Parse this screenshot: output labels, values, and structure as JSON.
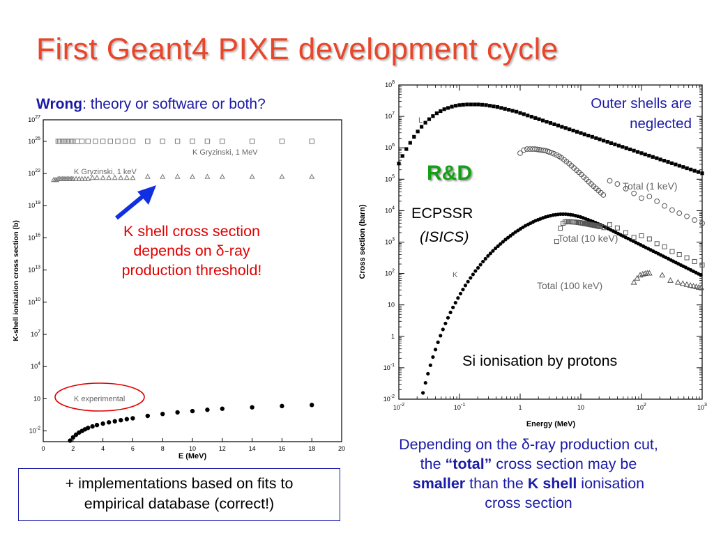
{
  "slide": {
    "title": "First Geant4 PIXE development cycle",
    "question_bold": "Wrong",
    "question_rest": ": theory or software or both?",
    "red_note": [
      "K shell cross section",
      "depends on δ-ray",
      "production threshold!"
    ],
    "box_note": [
      "+ implementations based on fits to",
      "empirical database (correct!)"
    ],
    "blue_note": {
      "line1": "Depending on the δ-ray production cut,",
      "line2_a": "the ",
      "line2_b": "“total”",
      "line2_c": " cross section may be",
      "line3_a": "smaller",
      "line3_b": " than the ",
      "line3_c": "K shell",
      "line3_d": " ionisation",
      "line4": "cross section"
    }
  },
  "chart_data": [
    {
      "type": "scatter",
      "xlabel": "E (MeV)",
      "ylabel": "K-shell ionization cross section (b)",
      "xlim": [
        0,
        20
      ],
      "ylim_log10": [
        -3,
        27
      ],
      "x_ticks": [
        "0",
        "2",
        "4",
        "6",
        "8",
        "10",
        "12",
        "14",
        "16",
        "18",
        "20"
      ],
      "y_ticks": [
        {
          "base": "10",
          "exp": "-2"
        },
        {
          "base": "10",
          "exp": ""
        },
        {
          "base": "10",
          "exp": "4"
        },
        {
          "base": "10",
          "exp": "7"
        },
        {
          "base": "10",
          "exp": "10"
        },
        {
          "base": "10",
          "exp": "13"
        },
        {
          "base": "10",
          "exp": "16"
        },
        {
          "base": "10",
          "exp": "19"
        },
        {
          "base": "10",
          "exp": "22"
        },
        {
          "base": "10",
          "exp": "25"
        },
        {
          "base": "10",
          "exp": "27"
        }
      ],
      "series": [
        {
          "name": "K Gryzinski, 1 MeV",
          "marker": "square",
          "x": [
            1.0,
            1.1,
            1.2,
            1.3,
            1.4,
            1.5,
            1.6,
            1.7,
            1.8,
            1.9,
            2.0,
            2.3,
            2.6,
            3.0,
            3.5,
            4.0,
            4.5,
            5.0,
            5.5,
            6.0,
            7.0,
            8.0,
            9.0,
            10.0,
            11.0,
            12.0,
            14.0,
            16.0,
            18.0
          ],
          "y": [
            25,
            25,
            25,
            25,
            25,
            25,
            25,
            25,
            25,
            25,
            25,
            25,
            25,
            25,
            25,
            25,
            25,
            25,
            25,
            25,
            25,
            25,
            25,
            25,
            25,
            25,
            25,
            25,
            25
          ]
        },
        {
          "name": "K Gryzinski, 1 keV",
          "marker": "triangle",
          "x": [
            0.7,
            0.8,
            0.9,
            1.0,
            1.1,
            1.2,
            1.3,
            1.4,
            1.5,
            1.6,
            1.7,
            1.8,
            1.9,
            2.0,
            2.2,
            2.4,
            2.6,
            2.8,
            3.0,
            3.3,
            3.6,
            4.0,
            4.4,
            4.8,
            5.2,
            5.6,
            6.0,
            7.0,
            8.0,
            9.0,
            10.0,
            11.0,
            12.0,
            14.0,
            16.0,
            18.0
          ],
          "y": [
            21.4,
            21.4,
            21.4,
            21.5,
            21.5,
            21.5,
            21.5,
            21.5,
            21.5,
            21.5,
            21.5,
            21.5,
            21.5,
            21.5,
            21.5,
            21.5,
            21.5,
            21.5,
            21.5,
            21.6,
            21.6,
            21.6,
            21.6,
            21.6,
            21.6,
            21.6,
            21.6,
            21.7,
            21.7,
            21.7,
            21.7,
            21.7,
            21.7,
            21.7,
            21.7,
            21.7
          ]
        },
        {
          "name": "K experimental",
          "marker": "dot",
          "x": [
            1.8,
            2.0,
            2.2,
            2.4,
            2.6,
            2.8,
            3.0,
            3.3,
            3.6,
            4.0,
            4.4,
            4.8,
            5.2,
            5.6,
            6.0,
            7.0,
            8.0,
            9.0,
            10.0,
            11.0,
            12.0,
            14.0,
            16.0,
            18.0
          ],
          "y": [
            -2.9,
            -2.6,
            -2.35,
            -2.15,
            -2.0,
            -1.85,
            -1.72,
            -1.58,
            -1.45,
            -1.32,
            -1.2,
            -1.1,
            -1.0,
            -0.9,
            -0.82,
            -0.6,
            -0.42,
            -0.27,
            -0.15,
            -0.03,
            0.07,
            0.2,
            0.32,
            0.42
          ]
        }
      ],
      "annotations": [
        "K Gryzinski, 1 MeV",
        "K Gryzinski, 1 keV",
        "K experimental"
      ]
    },
    {
      "type": "scatter",
      "xlabel": "Energy (MeV)",
      "ylabel": "Cross section (barn)",
      "x_log10": [
        -2,
        3
      ],
      "y_log10": [
        -2,
        8
      ],
      "x_ticks": [
        {
          "base": "10",
          "exp": "-2"
        },
        {
          "base": "10",
          "exp": "-1"
        },
        {
          "base": "1",
          "exp": ""
        },
        {
          "base": "10",
          "exp": ""
        },
        {
          "base": "10",
          "exp": "2"
        },
        {
          "base": "10",
          "exp": "3"
        }
      ],
      "y_ticks": [
        {
          "base": "10",
          "exp": "-2"
        },
        {
          "base": "10",
          "exp": "-1"
        },
        {
          "base": "1",
          "exp": ""
        },
        {
          "base": "10",
          "exp": ""
        },
        {
          "base": "10",
          "exp": "2"
        },
        {
          "base": "10",
          "exp": "3"
        },
        {
          "base": "10",
          "exp": "4"
        },
        {
          "base": "10",
          "exp": "5"
        },
        {
          "base": "10",
          "exp": "6"
        },
        {
          "base": "10",
          "exp": "7"
        },
        {
          "base": "10",
          "exp": "8"
        }
      ],
      "series": [
        {
          "name": "L",
          "marker": "square",
          "x": [
            0.01,
            0.0115,
            0.0133,
            0.0154,
            0.0178,
            0.0205,
            0.0237,
            0.0274,
            0.0316,
            0.0365,
            0.0422,
            0.0487,
            0.0562,
            0.0649,
            0.075,
            0.0866,
            0.1,
            0.115,
            0.133,
            0.154,
            0.178,
            0.205,
            0.237,
            0.274,
            0.316,
            0.365,
            0.422,
            0.487,
            0.562,
            0.649,
            0.75,
            0.866,
            1.0,
            1.15,
            1.33,
            1.54,
            1.78,
            2.05,
            2.37,
            2.74,
            3.16,
            3.65,
            4.22,
            4.87,
            5.62,
            6.49,
            7.5,
            8.66,
            10,
            11.5,
            13.3,
            15.4,
            17.8,
            20.5,
            23.7,
            27.4,
            31.6,
            36.5,
            42.2,
            48.7,
            56.2,
            64.9,
            75,
            86.6,
            100,
            115,
            133,
            154,
            178,
            205,
            237,
            274,
            316,
            365,
            422,
            487,
            562,
            649,
            750,
            866,
            1000
          ],
          "y": [
            5.5,
            5.74,
            5.96,
            6.16,
            6.35,
            6.52,
            6.67,
            6.8,
            6.91,
            7.01,
            7.1,
            7.17,
            7.23,
            7.27,
            7.31,
            7.34,
            7.36,
            7.37,
            7.38,
            7.38,
            7.38,
            7.38,
            7.37,
            7.36,
            7.34,
            7.32,
            7.3,
            7.27,
            7.24,
            7.21,
            7.18,
            7.15,
            7.11,
            7.07,
            7.03,
            6.99,
            6.95,
            6.91,
            6.87,
            6.83,
            6.79,
            6.75,
            6.71,
            6.67,
            6.63,
            6.59,
            6.55,
            6.51,
            6.47,
            6.43,
            6.39,
            6.35,
            6.31,
            6.27,
            6.23,
            6.19,
            6.15,
            6.11,
            6.07,
            6.03,
            5.99,
            5.95,
            5.91,
            5.87,
            5.83,
            5.79,
            5.75,
            5.71,
            5.67,
            5.63,
            5.59,
            5.55,
            5.51,
            5.47,
            5.43,
            5.39,
            5.35,
            5.31,
            5.27,
            5.23,
            5.19
          ]
        },
        {
          "name": "K",
          "marker": "dot",
          "x": [
            0.025,
            0.0275,
            0.0302,
            0.0332,
            0.0365,
            0.0402,
            0.0442,
            0.0486,
            0.0534,
            0.0587,
            0.0646,
            0.071,
            0.0781,
            0.0859,
            0.0944,
            0.104,
            0.114,
            0.125,
            0.138,
            0.152,
            0.167,
            0.183,
            0.202,
            0.222,
            0.244,
            0.268,
            0.295,
            0.324,
            0.356,
            0.392,
            0.431,
            0.473,
            0.521,
            0.573,
            0.63,
            0.692,
            0.761,
            0.837,
            0.921,
            1.01,
            1.11,
            1.22,
            1.35,
            1.48,
            1.63,
            1.79,
            1.97,
            2.16,
            2.38,
            2.62,
            2.88,
            3.16,
            3.48,
            3.83,
            4.21,
            4.63,
            5.09,
            5.6,
            6.16,
            6.77,
            7.44,
            8.19,
            9.0,
            9.9,
            10.9,
            12.0,
            13.2,
            14.5,
            15.9,
            17.5,
            19.3,
            21.2,
            23.3,
            25.6,
            28.2,
            31.0,
            34.1,
            37.5,
            41.2,
            45.3,
            49.8,
            54.8,
            60.3,
            66.3,
            72.9,
            80.2,
            88.2,
            97.0,
            107,
            117,
            129,
            142,
            156,
            172,
            189,
            208,
            229,
            251,
            277,
            304,
            334,
            368,
            404,
            445,
            489,
            538,
            592,
            651,
            716,
            788,
            866,
            953
          ],
          "y": [
            -1.8,
            -1.48,
            -1.19,
            -0.92,
            -0.66,
            -0.42,
            -0.19,
            0.02,
            0.22,
            0.41,
            0.59,
            0.76,
            0.92,
            1.07,
            1.22,
            1.36,
            1.49,
            1.62,
            1.74,
            1.86,
            1.97,
            2.08,
            2.18,
            2.28,
            2.38,
            2.47,
            2.56,
            2.64,
            2.72,
            2.8,
            2.87,
            2.94,
            3.01,
            3.08,
            3.14,
            3.2,
            3.26,
            3.32,
            3.37,
            3.42,
            3.47,
            3.52,
            3.56,
            3.6,
            3.64,
            3.68,
            3.71,
            3.74,
            3.77,
            3.8,
            3.82,
            3.84,
            3.86,
            3.87,
            3.88,
            3.89,
            3.89,
            3.89,
            3.88,
            3.87,
            3.86,
            3.84,
            3.82,
            3.8,
            3.77,
            3.74,
            3.71,
            3.68,
            3.65,
            3.62,
            3.58,
            3.55,
            3.51,
            3.47,
            3.43,
            3.39,
            3.35,
            3.31,
            3.27,
            3.23,
            3.19,
            3.15,
            3.11,
            3.07,
            3.03,
            2.99,
            2.95,
            2.91,
            2.87,
            2.83,
            2.79,
            2.75,
            2.71,
            2.67,
            2.63,
            2.59,
            2.55,
            2.51,
            2.47,
            2.43,
            2.39,
            2.35,
            2.31,
            2.27,
            2.23,
            2.19,
            2.15,
            2.11,
            2.07,
            2.03,
            1.99,
            1.95
          ]
        },
        {
          "name": "Total (1 keV)",
          "marker": "circle",
          "x": [
            1.0,
            1.15,
            1.3,
            1.45,
            1.6,
            1.75,
            1.9,
            2.05,
            2.2,
            2.4,
            2.6,
            2.8,
            3.0,
            3.3,
            3.6,
            4.0,
            4.4,
            4.8,
            5.3,
            5.8,
            6.4,
            7.0,
            7.7,
            8.5,
            9.3,
            10.2,
            11.2,
            12.3,
            13.5,
            14.8,
            16.2,
            17.8,
            19.5,
            21.4,
            23.5,
            30,
            40,
            55,
            75,
            100,
            135,
            180,
            240,
            320,
            420,
            560,
            750,
            1000
          ],
          "y": [
            5.83,
            5.93,
            5.96,
            5.96,
            5.96,
            5.96,
            5.95,
            5.94,
            5.93,
            5.92,
            5.91,
            5.89,
            5.87,
            5.84,
            5.81,
            5.77,
            5.73,
            5.68,
            5.62,
            5.56,
            5.5,
            5.43,
            5.36,
            5.29,
            5.22,
            5.15,
            5.07,
            5.0,
            4.92,
            4.85,
            4.78,
            4.71,
            4.64,
            4.57,
            4.5,
            4.95,
            4.85,
            4.7,
            4.55,
            4.4,
            4.45,
            4.3,
            4.15,
            4.02,
            3.92,
            3.82,
            3.7,
            3.6
          ]
        },
        {
          "name": "Total (10 keV)",
          "marker": "square",
          "x": [
            4.0,
            4.6,
            5.1,
            5.5,
            5.9,
            6.3,
            6.7,
            7.1,
            7.5,
            7.9,
            8.3,
            8.7,
            9.1,
            9.5,
            9.9,
            10.3,
            10.7,
            11.1,
            11.5,
            11.9,
            12.3,
            12.7,
            13.1,
            13.5,
            13.9,
            14.3,
            14.7,
            15.2,
            15.7,
            16.2,
            16.8,
            17.4,
            18.0,
            18.6,
            19.2,
            19.8,
            21.0,
            24.0,
            30,
            40,
            55,
            75,
            100,
            135,
            180,
            240,
            320,
            420,
            560,
            750,
            1000
          ],
          "y": [
            3.02,
            3.44,
            3.6,
            3.64,
            3.65,
            3.65,
            3.65,
            3.64,
            3.64,
            3.64,
            3.63,
            3.63,
            3.62,
            3.62,
            3.61,
            3.61,
            3.6,
            3.6,
            3.59,
            3.59,
            3.58,
            3.58,
            3.57,
            3.57,
            3.56,
            3.56,
            3.55,
            3.55,
            3.54,
            3.54,
            3.53,
            3.53,
            3.52,
            3.52,
            3.51,
            3.5,
            3.49,
            3.46,
            3.55,
            3.45,
            3.3,
            3.15,
            3.2,
            3.1,
            2.95,
            2.85,
            2.7,
            2.6,
            2.5,
            2.38,
            2.27
          ]
        },
        {
          "name": "Total (100 keV)",
          "marker": "triangle",
          "x": [
            75,
            85,
            95,
            105,
            115,
            125,
            135,
            220,
            300,
            400,
            480,
            560,
            640,
            720,
            800,
            880,
            960
          ],
          "y": [
            1.72,
            1.85,
            1.95,
            1.98,
            2.0,
            2.01,
            2.01,
            1.95,
            1.78,
            1.72,
            1.68,
            1.65,
            1.62,
            1.6,
            1.58,
            1.56,
            1.55
          ]
        }
      ],
      "annotations": {
        "outer": [
          "Outer shells are",
          "neglected"
        ],
        "rd": "R&D",
        "ecpssr": "ECPSSR",
        "isics": "(ISICS)",
        "si_caption": "Si ionisation by protons",
        "label_L": "L",
        "label_K": "K",
        "label_t1": "Total (1 keV)",
        "label_t10": "Total (10 keV)",
        "label_t100": "Total (100 keV)"
      }
    }
  ]
}
